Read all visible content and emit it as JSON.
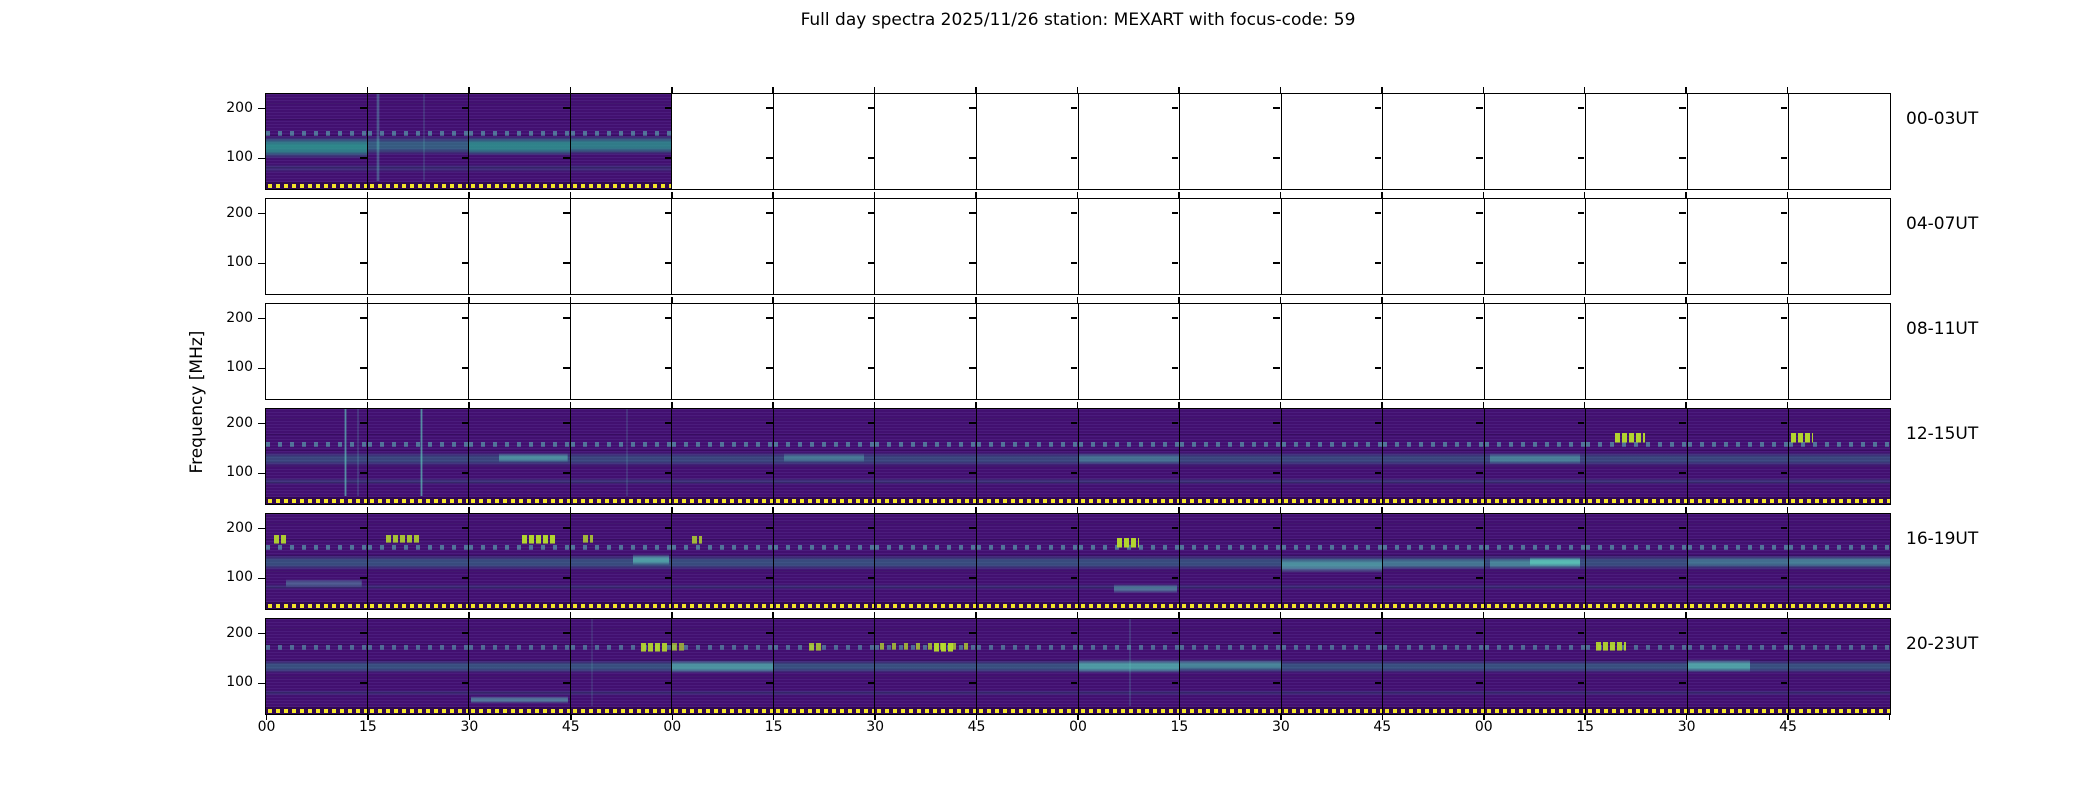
{
  "title": "Full day spectra 2025/11/26 station: MEXART with focus-code: 59",
  "chart_data": {
    "type": "heatmap",
    "title": "Full day spectra 2025/11/26 station: MEXART with focus-code: 59",
    "station": "MEXART",
    "date": "2025/11/26",
    "focus_code": "59",
    "ylabel": "Frequency [MHz]",
    "y_tick_labels": [
      "200",
      "100"
    ],
    "y_ticks_mhz": [
      200,
      100
    ],
    "y_range_mhz": [
      40,
      225
    ],
    "row_labels": [
      "00-03UT",
      "04-07UT",
      "08-11UT",
      "12-15UT",
      "16-19UT",
      "20-23UT"
    ],
    "panels_per_row": 16,
    "minutes_per_panel": 15,
    "x_tick_labels": [
      "00",
      "15",
      "30",
      "45",
      "00",
      "15",
      "30",
      "45",
      "00",
      "15",
      "30",
      "45",
      "00",
      "15",
      "30",
      "45"
    ],
    "legend_position": "none",
    "grid": false,
    "data_coverage": [
      {
        "row": "00-03UT",
        "panels_with_data": [
          0,
          1,
          2,
          3
        ]
      },
      {
        "row": "04-07UT",
        "panels_with_data": []
      },
      {
        "row": "08-11UT",
        "panels_with_data": []
      },
      {
        "row": "12-15UT",
        "panels_with_data": [
          0,
          1,
          2,
          3,
          4,
          5,
          6,
          7,
          8,
          9,
          10,
          11,
          12,
          13,
          14,
          15
        ]
      },
      {
        "row": "16-19UT",
        "panels_with_data": [
          0,
          1,
          2,
          3,
          4,
          5,
          6,
          7,
          8,
          9,
          10,
          11,
          12,
          13,
          14,
          15
        ]
      },
      {
        "row": "20-23UT",
        "panels_with_data": [
          0,
          1,
          2,
          3,
          4,
          5,
          6,
          7,
          8,
          9,
          10,
          11,
          12,
          13,
          14,
          15
        ]
      }
    ],
    "colors": {
      "base": "#421070",
      "panel_dark": "#2c0a50",
      "stripe": "#8a6ad0",
      "teal": "#2aa391",
      "cyan": "#5fd4bf",
      "green": "#b8de2b",
      "yellow": "#f1e42a",
      "strip_bg": "#30094f",
      "empty": "#ffffff",
      "frame": "#000000"
    },
    "row_features": {
      "0": [
        {
          "t": "dashes",
          "x": 0,
          "w": 1,
          "y": 0.42,
          "h": 0.05,
          "c": "cyan",
          "a": 0.5
        },
        {
          "t": "band",
          "x": 0,
          "w": 1,
          "y": 0.48,
          "h": 0.2,
          "c": "teal",
          "a": 0.5
        },
        {
          "t": "band",
          "x": 0,
          "w": 1,
          "y": 0.8,
          "h": 0.09,
          "c": "teal",
          "a": 0.16
        }
      ],
      "3": [
        {
          "t": "dashes",
          "x": 0,
          "w": 1,
          "y": 0.38,
          "h": 0.05,
          "c": "cyan",
          "a": 0.5
        },
        {
          "t": "band",
          "x": 0,
          "w": 1,
          "y": 0.49,
          "h": 0.15,
          "c": "teal",
          "a": 0.35
        },
        {
          "t": "band",
          "x": 0,
          "w": 1,
          "y": 0.79,
          "h": 0.07,
          "c": "teal",
          "a": 0.2
        }
      ],
      "4": [
        {
          "t": "dashes",
          "x": 0,
          "w": 1,
          "y": 0.36,
          "h": 0.05,
          "c": "cyan",
          "a": 0.5
        },
        {
          "t": "band",
          "x": 0,
          "w": 1,
          "y": 0.47,
          "h": 0.16,
          "c": "teal",
          "a": 0.4
        },
        {
          "t": "band",
          "x": 0,
          "w": 1,
          "y": 0.8,
          "h": 0.06,
          "c": "teal",
          "a": 0.16
        }
      ],
      "5": [
        {
          "t": "dashes",
          "x": 0,
          "w": 1,
          "y": 0.3,
          "h": 0.05,
          "c": "cyan",
          "a": 0.45
        },
        {
          "t": "band",
          "x": 0,
          "w": 1,
          "y": 0.47,
          "h": 0.14,
          "c": "teal",
          "a": 0.42
        },
        {
          "t": "band",
          "x": 0,
          "w": 1,
          "y": 0.82,
          "h": 0.06,
          "c": "teal",
          "a": 0.16
        }
      ]
    },
    "panel_features": {
      "0": {
        "0": [
          {
            "t": "band",
            "x": 0,
            "w": 1,
            "y": 0.5,
            "h": 0.22,
            "c": "teal",
            "a": 0.6
          }
        ],
        "1": [
          {
            "t": "vline",
            "x": 0.08,
            "w": 0.04,
            "c": "cyan",
            "a": 0.45
          },
          {
            "t": "vline",
            "x": 0.55,
            "w": 0.02,
            "c": "cyan",
            "a": 0.3
          }
        ],
        "2": [
          {
            "t": "band",
            "x": 0,
            "w": 1,
            "y": 0.49,
            "h": 0.2,
            "c": "teal",
            "a": 0.55
          }
        ],
        "3": [
          {
            "t": "band",
            "x": 0,
            "w": 1,
            "y": 0.48,
            "h": 0.18,
            "c": "teal",
            "a": 0.45
          }
        ]
      },
      "3": {
        "0": [
          {
            "t": "vline",
            "x": 0.77,
            "w": 0.03,
            "c": "cyan",
            "a": 0.75
          },
          {
            "t": "vline",
            "x": 0.9,
            "w": 0.02,
            "c": "cyan",
            "a": 0.35
          }
        ],
        "1": [
          {
            "t": "vline",
            "x": 0.52,
            "w": 0.03,
            "c": "cyan",
            "a": 0.75
          }
        ],
        "2": [
          {
            "t": "band",
            "x": 0.3,
            "w": 0.68,
            "y": 0.5,
            "h": 0.1,
            "c": "cyan",
            "a": 0.5
          }
        ],
        "3": [
          {
            "t": "vline",
            "x": 0.55,
            "w": 0.02,
            "c": "cyan",
            "a": 0.3
          }
        ],
        "5": [
          {
            "t": "band",
            "x": 0.1,
            "w": 0.8,
            "y": 0.5,
            "h": 0.1,
            "c": "cyan",
            "a": 0.35
          }
        ],
        "8": [
          {
            "t": "band",
            "x": 0,
            "w": 1,
            "y": 0.5,
            "h": 0.12,
            "c": "cyan",
            "a": 0.3
          }
        ],
        "12": [
          {
            "t": "band",
            "x": 0.05,
            "w": 0.9,
            "y": 0.5,
            "h": 0.12,
            "c": "cyan",
            "a": 0.4
          }
        ],
        "13": [
          {
            "t": "block",
            "x": 0.28,
            "w": 0.3,
            "y": 0.27,
            "h": 0.1,
            "c": "green",
            "a": 0.95
          }
        ],
        "15": [
          {
            "t": "block",
            "x": 0.02,
            "w": 0.22,
            "y": 0.27,
            "h": 0.1,
            "c": "green",
            "a": 0.95
          }
        ]
      },
      "4": {
        "0": [
          {
            "t": "block",
            "x": 0.08,
            "w": 0.14,
            "y": 0.24,
            "h": 0.09,
            "c": "green",
            "a": 0.9
          },
          {
            "t": "band",
            "x": 0.2,
            "w": 0.75,
            "y": 0.75,
            "h": 0.09,
            "c": "cyan",
            "a": 0.35
          }
        ],
        "1": [
          {
            "t": "block",
            "x": 0.18,
            "w": 0.34,
            "y": 0.24,
            "h": 0.08,
            "c": "green",
            "a": 0.85
          }
        ],
        "2": [
          {
            "t": "block",
            "x": 0.52,
            "w": 0.34,
            "y": 0.24,
            "h": 0.09,
            "c": "green",
            "a": 0.95
          }
        ],
        "3": [
          {
            "t": "block",
            "x": 0.12,
            "w": 0.1,
            "y": 0.24,
            "h": 0.08,
            "c": "green",
            "a": 0.8
          },
          {
            "t": "band",
            "x": 0.62,
            "w": 0.36,
            "y": 0.46,
            "h": 0.12,
            "c": "cyan",
            "a": 0.6
          }
        ],
        "4": [
          {
            "t": "block",
            "x": 0.2,
            "w": 0.1,
            "y": 0.25,
            "h": 0.08,
            "c": "green",
            "a": 0.8
          }
        ],
        "8": [
          {
            "t": "block",
            "x": 0.38,
            "w": 0.22,
            "y": 0.27,
            "h": 0.1,
            "c": "green",
            "a": 0.95
          },
          {
            "t": "band",
            "x": 0.35,
            "w": 0.63,
            "y": 0.8,
            "h": 0.1,
            "c": "cyan",
            "a": 0.45
          }
        ],
        "10": [
          {
            "t": "band",
            "x": 0,
            "w": 1,
            "y": 0.5,
            "h": 0.16,
            "c": "cyan",
            "a": 0.5
          }
        ],
        "11": [
          {
            "t": "band",
            "x": 0,
            "w": 1,
            "y": 0.5,
            "h": 0.12,
            "c": "cyan",
            "a": 0.3
          }
        ],
        "12": [
          {
            "t": "band",
            "x": 0.45,
            "w": 0.5,
            "y": 0.49,
            "h": 0.1,
            "c": "cyan",
            "a": 0.7
          },
          {
            "t": "band",
            "x": 0.05,
            "w": 0.9,
            "y": 0.5,
            "h": 0.12,
            "c": "cyan",
            "a": 0.4
          }
        ],
        "14": [
          {
            "t": "band",
            "x": 0,
            "w": 1,
            "y": 0.48,
            "h": 0.12,
            "c": "cyan",
            "a": 0.25
          }
        ],
        "15": [
          {
            "t": "band",
            "x": 0,
            "w": 1,
            "y": 0.48,
            "h": 0.12,
            "c": "cyan",
            "a": 0.35
          }
        ]
      },
      "5": {
        "2": [
          {
            "t": "band",
            "x": 0.02,
            "w": 0.96,
            "y": 0.89,
            "h": 0.08,
            "c": "cyan",
            "a": 0.5
          }
        ],
        "3": [
          {
            "t": "block",
            "x": 0.7,
            "w": 0.28,
            "y": 0.28,
            "h": 0.09,
            "c": "green",
            "a": 0.9
          },
          {
            "t": "vline",
            "x": 0.2,
            "w": 0.02,
            "c": "cyan",
            "a": 0.25
          }
        ],
        "4": [
          {
            "t": "block",
            "x": 0,
            "w": 0.12,
            "y": 0.28,
            "h": 0.08,
            "c": "green",
            "a": 0.7
          },
          {
            "t": "band",
            "x": 0,
            "w": 1,
            "y": 0.47,
            "h": 0.14,
            "c": "cyan",
            "a": 0.5
          }
        ],
        "5": [
          {
            "t": "block",
            "x": 0.35,
            "w": 0.12,
            "y": 0.27,
            "h": 0.08,
            "c": "green",
            "a": 0.8
          }
        ],
        "6": [
          {
            "t": "dashes",
            "x": 0.05,
            "w": 0.9,
            "y": 0.27,
            "h": 0.07,
            "c": "green",
            "a": 0.75
          },
          {
            "t": "block",
            "x": 0.58,
            "w": 0.2,
            "y": 0.27,
            "h": 0.09,
            "c": "green",
            "a": 0.95
          }
        ],
        "8": [
          {
            "t": "band",
            "x": 0,
            "w": 1,
            "y": 0.46,
            "h": 0.15,
            "c": "cyan",
            "a": 0.55
          },
          {
            "t": "vline",
            "x": 0.5,
            "w": 0.02,
            "c": "cyan",
            "a": 0.35
          }
        ],
        "9": [
          {
            "t": "band",
            "x": 0,
            "w": 1,
            "y": 0.46,
            "h": 0.12,
            "c": "cyan",
            "a": 0.4
          }
        ],
        "13": [
          {
            "t": "block",
            "x": 0.1,
            "w": 0.3,
            "y": 0.26,
            "h": 0.09,
            "c": "green",
            "a": 0.9
          }
        ],
        "14": [
          {
            "t": "band",
            "x": 0,
            "w": 0.62,
            "y": 0.46,
            "h": 0.14,
            "c": "cyan",
            "a": 0.6
          }
        ]
      }
    }
  }
}
